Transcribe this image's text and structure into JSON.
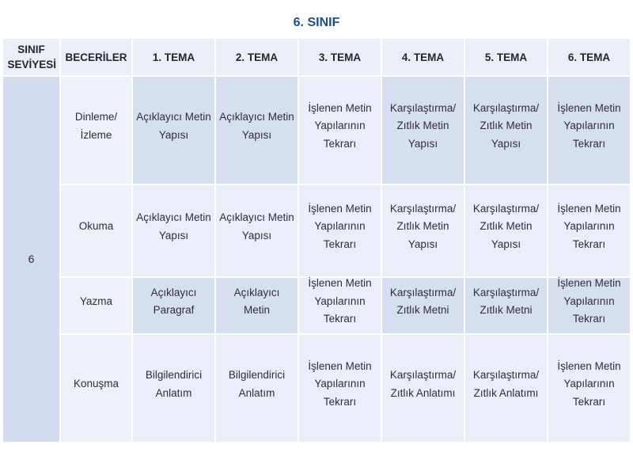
{
  "title": "6. SINIF",
  "header": {
    "level": "SINIF SEVİYESİ",
    "skills": "BECERİLER",
    "themes": [
      "1. TEMA",
      "2. TEMA",
      "3. TEMA",
      "4. TEMA",
      "5. TEMA",
      "6. TEMA"
    ]
  },
  "level_value": "6",
  "rows": [
    {
      "skill": "Dinleme/ İzleme",
      "cells": [
        "Açıklayıcı Metin Yapısı",
        "Açıklayıcı Metin Yapısı",
        "İşlenen Metin Yapılarının Tekrarı",
        "Karşılaştırma/ Zıtlık Metin Yapısı",
        "Karşılaştırma/ Zıtlık Metin Yapısı",
        "İşlenen Metin Yapılarının Tekrarı"
      ]
    },
    {
      "skill": "Okuma",
      "cells": [
        "Açıklayıcı Metin Yapısı",
        "Açıklayıcı Metin Yapısı",
        "İşlenen Metin Yapılarının Tekrarı",
        "Karşılaştırma/ Zıtlık Metin Yapısı",
        "Karşılaştırma/ Zıtlık Metin Yapısı",
        "İşlenen Metin Yapılarının Tekrarı"
      ]
    },
    {
      "skill": "Yazma",
      "cells": [
        "Açıklayıcı Paragraf",
        "Açıklayıcı Metin",
        "İşlenen Metin Yapılarının Tekrarı",
        "Karşılaştırma/ Zıtlık Metni",
        "Karşılaştırma/ Zıtlık Metni",
        "İşlenen Metin Yapılarının Tekrarı"
      ]
    },
    {
      "skill": "Konuşma",
      "cells": [
        "Bilgilendirici Anlatım",
        "Bilgilendirici Anlatım",
        "İşlenen Metin Yapılarının Tekrarı",
        "Karşılaştırma/ Zıtlık Anlatımı",
        "Karşılaştırma/ Zıtlık Anlatımı",
        "İşlenen Metin Yapılarının Tekrarı"
      ]
    }
  ]
}
